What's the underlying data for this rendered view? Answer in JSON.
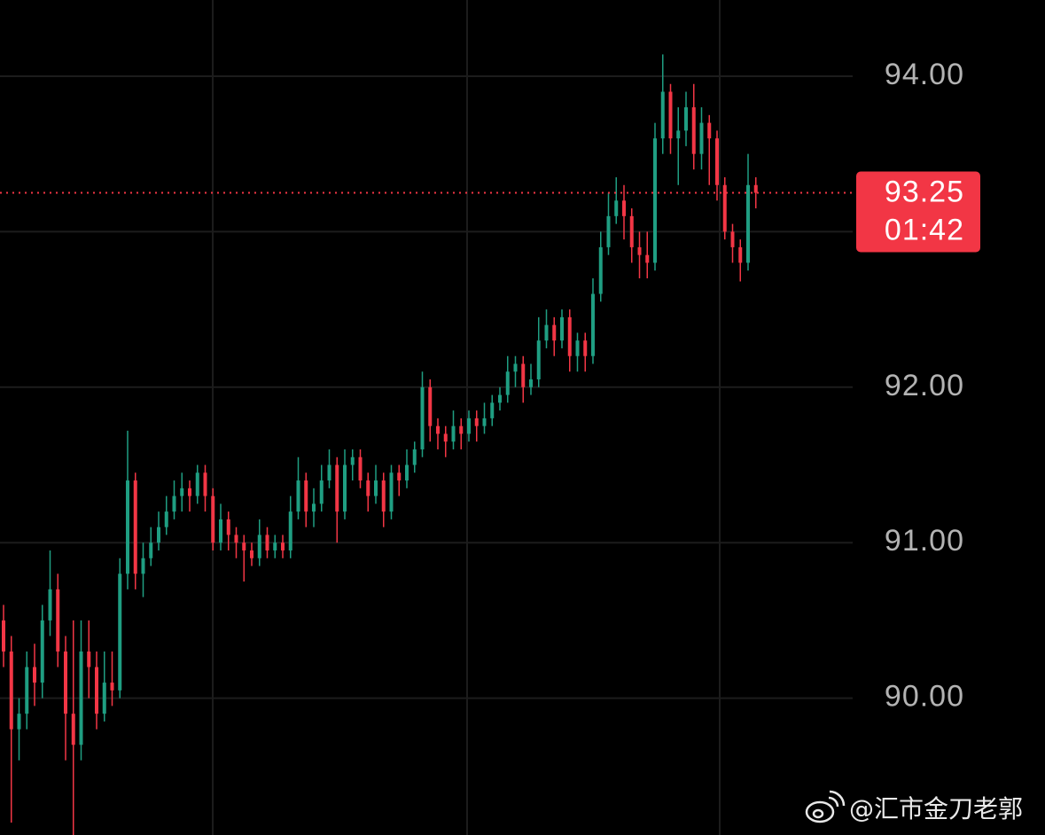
{
  "chart_data": {
    "type": "candlestick",
    "open": [
      90.5,
      90.3,
      89.8,
      89.9,
      90.2,
      90.1,
      90.5,
      90.7,
      90.3,
      89.9,
      89.7,
      90.3,
      90.2,
      89.9,
      90.1,
      90.05,
      90.8,
      91.4,
      90.8,
      90.9,
      91.0,
      91.1,
      91.2,
      91.3,
      91.35,
      91.3,
      91.45,
      91.3,
      91.0,
      91.15,
      91.05,
      91.0,
      90.95,
      90.9,
      91.05,
      90.95,
      91.0,
      90.95,
      91.2,
      91.4,
      91.2,
      91.25,
      91.4,
      91.5,
      91.2,
      91.5,
      91.55,
      91.4,
      91.3,
      91.4,
      91.2,
      91.45,
      91.4,
      91.5,
      91.6,
      92.0,
      91.75,
      91.7,
      91.65,
      91.75,
      91.7,
      91.8,
      91.75,
      91.8,
      91.9,
      91.95,
      92.1,
      92.15,
      92.0,
      92.05,
      92.3,
      92.4,
      92.3,
      92.45,
      92.2,
      92.3,
      92.2,
      92.6,
      92.9,
      93.1,
      93.2,
      93.1,
      92.9,
      92.85,
      92.8,
      93.6,
      93.9,
      93.6,
      93.65,
      93.8,
      93.5,
      93.7,
      93.6,
      93.3,
      93.0,
      92.9,
      92.8,
      93.3
    ],
    "high": [
      90.6,
      90.4,
      90.0,
      90.3,
      90.35,
      90.6,
      90.95,
      90.8,
      90.4,
      90.5,
      90.5,
      90.5,
      90.3,
      90.3,
      90.3,
      90.9,
      91.72,
      91.45,
      91.0,
      91.1,
      91.2,
      91.3,
      91.4,
      91.45,
      91.4,
      91.5,
      91.5,
      91.35,
      91.25,
      91.2,
      91.1,
      91.05,
      91.0,
      91.15,
      91.1,
      91.05,
      91.05,
      91.3,
      91.55,
      91.45,
      91.35,
      91.5,
      91.6,
      91.55,
      91.6,
      91.6,
      91.6,
      91.45,
      91.5,
      91.45,
      91.5,
      91.5,
      91.6,
      91.65,
      92.1,
      92.05,
      91.8,
      91.75,
      91.85,
      91.8,
      91.85,
      91.85,
      91.9,
      91.95,
      92.0,
      92.2,
      92.2,
      92.2,
      92.15,
      92.45,
      92.5,
      92.45,
      92.5,
      92.5,
      92.35,
      92.35,
      92.7,
      93.0,
      93.25,
      93.35,
      93.3,
      93.15,
      93.0,
      93.0,
      93.7,
      94.14,
      93.95,
      93.8,
      93.9,
      93.95,
      93.8,
      93.75,
      93.65,
      93.35,
      93.05,
      92.95,
      93.5,
      93.35
    ],
    "low": [
      90.2,
      89.2,
      89.6,
      89.8,
      89.95,
      90.0,
      90.4,
      90.2,
      89.6,
      89.1,
      89.6,
      90.0,
      89.8,
      89.85,
      89.95,
      90.0,
      90.7,
      90.7,
      90.65,
      90.85,
      90.95,
      91.05,
      91.15,
      91.2,
      91.2,
      91.25,
      91.2,
      90.95,
      90.95,
      90.95,
      90.9,
      90.75,
      90.85,
      90.85,
      90.9,
      90.9,
      90.9,
      90.9,
      91.15,
      91.1,
      91.1,
      91.2,
      91.35,
      91.0,
      91.15,
      91.4,
      91.35,
      91.2,
      91.25,
      91.1,
      91.15,
      91.3,
      91.35,
      91.45,
      91.55,
      91.65,
      91.6,
      91.55,
      91.6,
      91.6,
      91.65,
      91.65,
      91.7,
      91.75,
      91.85,
      91.9,
      92.0,
      91.9,
      91.95,
      92.0,
      92.25,
      92.2,
      92.25,
      92.1,
      92.1,
      92.1,
      92.15,
      92.55,
      92.85,
      93.05,
      92.95,
      92.8,
      92.7,
      92.7,
      92.75,
      93.5,
      93.5,
      93.3,
      93.55,
      93.4,
      93.4,
      93.3,
      93.2,
      92.95,
      92.8,
      92.68,
      92.75,
      93.15
    ],
    "close": [
      90.3,
      89.8,
      89.9,
      90.2,
      90.1,
      90.5,
      90.7,
      90.3,
      89.9,
      89.7,
      90.3,
      90.2,
      89.9,
      90.1,
      90.05,
      90.8,
      91.4,
      90.8,
      90.9,
      91.0,
      91.1,
      91.2,
      91.3,
      91.35,
      91.3,
      91.45,
      91.3,
      91.0,
      91.15,
      91.05,
      91.0,
      90.95,
      90.9,
      91.05,
      90.95,
      91.0,
      90.95,
      91.2,
      91.4,
      91.2,
      91.25,
      91.4,
      91.5,
      91.2,
      91.5,
      91.55,
      91.4,
      91.3,
      91.4,
      91.2,
      91.45,
      91.4,
      91.5,
      91.6,
      92.0,
      91.75,
      91.7,
      91.65,
      91.75,
      91.7,
      91.8,
      91.75,
      91.8,
      91.9,
      91.95,
      92.1,
      92.15,
      92.0,
      92.05,
      92.3,
      92.4,
      92.3,
      92.45,
      92.2,
      92.3,
      92.2,
      92.6,
      92.9,
      93.1,
      93.2,
      93.1,
      92.9,
      92.85,
      92.8,
      93.6,
      93.9,
      93.6,
      93.65,
      93.8,
      93.5,
      93.7,
      93.6,
      93.3,
      93.0,
      92.9,
      92.8,
      93.3,
      93.25
    ],
    "up_color": "#1f9e82",
    "down_color": "#f23645",
    "ylim": [
      89.12,
      94.49
    ],
    "yticks": [
      {
        "value": 94,
        "label": "94.00"
      },
      {
        "value": 92,
        "label": "92.00"
      },
      {
        "value": 91,
        "label": "91.00"
      },
      {
        "value": 90,
        "label": "90.00"
      }
    ],
    "ygrid": [
      90,
      91,
      92,
      93,
      94
    ],
    "last_price": 93.25,
    "countdown": "01:42",
    "price_line_color": "#f23645"
  },
  "watermark": "@汇市金刀老郭"
}
